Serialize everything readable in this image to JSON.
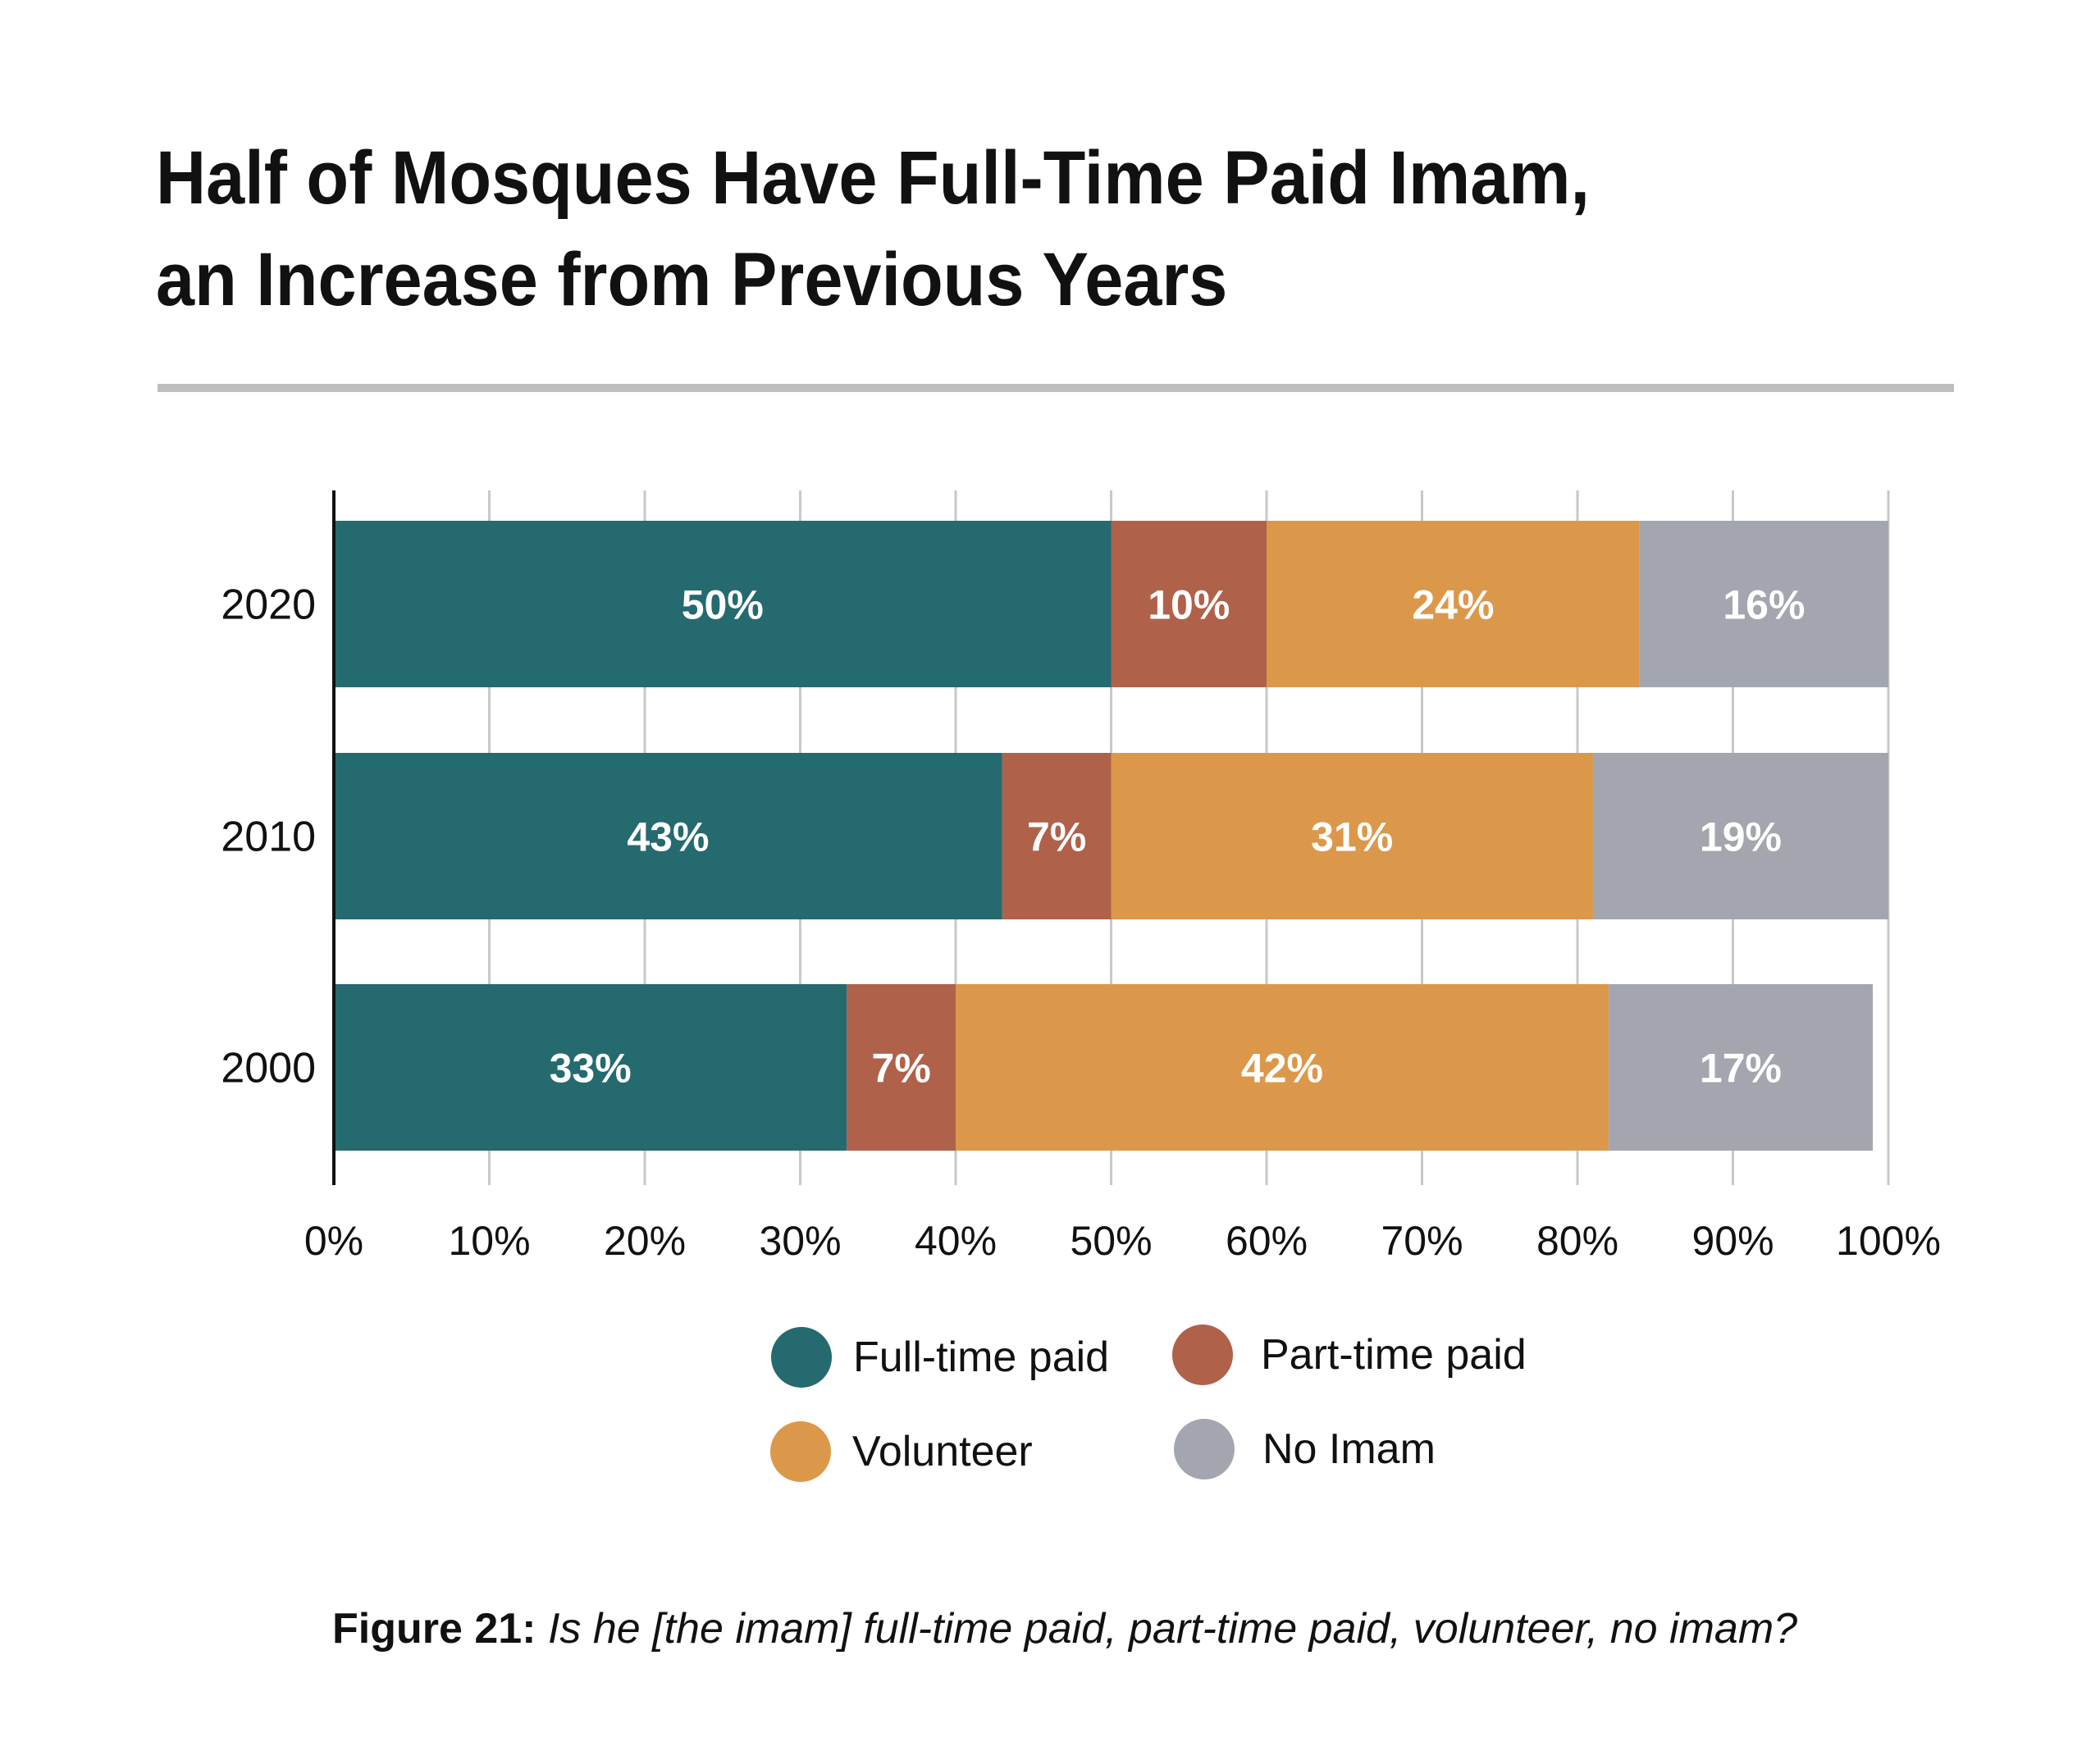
{
  "header": {
    "title_line1": "Half of Mosques Have Full-Time Paid Imam,",
    "title_line2": "an Increase from Previous Years"
  },
  "chart_data": {
    "type": "bar",
    "orientation": "horizontal",
    "stacked": true,
    "title": "Half of Mosques Have Full-Time Paid Imam, an Increase from Previous Years",
    "categories": [
      "2020",
      "2010",
      "2000"
    ],
    "series": [
      {
        "name": "Full-time paid",
        "color": "#256a6f",
        "values": [
          50,
          43,
          33
        ]
      },
      {
        "name": "Part-time paid",
        "color": "#b0614a",
        "values": [
          10,
          7,
          7
        ]
      },
      {
        "name": "Volunteer",
        "color": "#dc984a",
        "values": [
          24,
          31,
          42
        ]
      },
      {
        "name": "No Imam",
        "color": "#a3a6ae",
        "values": [
          16,
          19,
          17
        ]
      }
    ],
    "xlim": [
      0,
      100
    ],
    "xticks": [
      "0%",
      "10%",
      "20%",
      "30%",
      "40%",
      "50%",
      "60%",
      "70%",
      "80%",
      "90%",
      "100%"
    ],
    "xlabel": "",
    "ylabel": "",
    "value_suffix": "%",
    "grid": "vertical",
    "legend_position": "bottom"
  },
  "legend": {
    "items": [
      {
        "label": "Full-time paid",
        "color": "#256a6f"
      },
      {
        "label": "Part-time paid",
        "color": "#b0614a"
      },
      {
        "label": "Volunteer",
        "color": "#dc984a"
      },
      {
        "label": "No Imam",
        "color": "#a3a6ae"
      }
    ]
  },
  "caption": {
    "figure_label": "Figure 21:",
    "question": "Is he [the imam] full-time paid, part-time paid, volunteer, no imam?"
  }
}
